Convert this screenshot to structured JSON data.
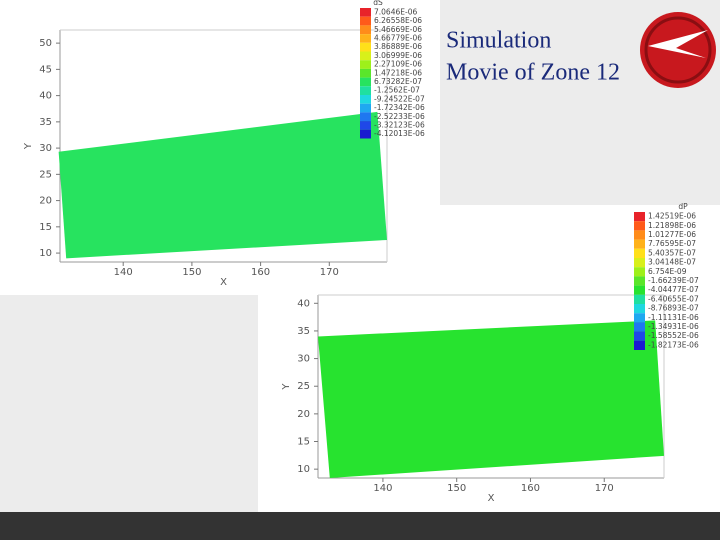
{
  "title_lines": [
    "Simulation",
    "Movie of Zone 12"
  ],
  "chart_data": [
    {
      "type": "contour",
      "xlabel": "X",
      "ylabel": "Y",
      "xlim": [
        130.8,
        178.4
      ],
      "ylim": [
        8.3,
        52.5
      ],
      "xticks": [
        140,
        150,
        160,
        170
      ],
      "yticks": [
        10,
        15,
        20,
        25,
        30,
        35,
        40,
        45,
        50
      ],
      "region": {
        "x": [
          130.6,
          177,
          178.4,
          131.7
        ],
        "y": [
          29.3,
          36.9,
          12.5,
          9.0
        ]
      },
      "color": "#27e35f",
      "legend_title": "dS",
      "levels": [
        "7.0646E-06",
        "6.26558E-06",
        "5.46669E-06",
        "4.66779E-06",
        "3.86889E-06",
        "3.06999E-06",
        "2.27109E-06",
        "1.47218E-06",
        "6.73282E-07",
        "-1.2562E-07",
        "-9.24522E-07",
        "-1.72342E-06",
        "-2.52233E-06",
        "-3.32123E-06",
        "-4.12013E-06"
      ],
      "level_colors": [
        "#e8232a",
        "#ff5a1a",
        "#ff8c1a",
        "#ffb21a",
        "#ffe01a",
        "#d8f01a",
        "#9ef01a",
        "#5ae62a",
        "#27e35f",
        "#1fe0a0",
        "#1fd8e0",
        "#1fa8f0",
        "#1f78f0",
        "#1f48e8",
        "#1a1ad0"
      ]
    },
    {
      "type": "contour",
      "xlabel": "X",
      "ylabel": "Y",
      "xlim": [
        131.2,
        178.1
      ],
      "ylim": [
        8.4,
        41.5
      ],
      "xticks": [
        140,
        150,
        160,
        170
      ],
      "yticks": [
        10,
        15,
        20,
        25,
        30,
        35,
        40
      ],
      "region": {
        "x": [
          131.2,
          176.9,
          178.1,
          132.8
        ],
        "y": [
          34.0,
          36.9,
          12.4,
          8.4
        ]
      },
      "color": "#27e32f",
      "legend_title": "dP",
      "levels": [
        "1.42519E-06",
        "1.21898E-06",
        "1.01277E-06",
        "7.76595E-07",
        "5.40357E-07",
        "3.04148E-07",
        "6.754E-09",
        "-1.66239E-07",
        "-4.04477E-07",
        "-6.40655E-07",
        "-8.76893E-07",
        "-1.11131E-06",
        "-1.34931E-06",
        "-1.58552E-06",
        "-1.82173E-06"
      ],
      "level_colors": [
        "#e8232a",
        "#ff5a1a",
        "#ff8c1a",
        "#ffb21a",
        "#ffe01a",
        "#d8f01a",
        "#9ef01a",
        "#5ae62a",
        "#27e32f",
        "#1fe0a0",
        "#1fd8e0",
        "#1fa8f0",
        "#1f78f0",
        "#1f48e8",
        "#1a1ad0"
      ]
    }
  ]
}
